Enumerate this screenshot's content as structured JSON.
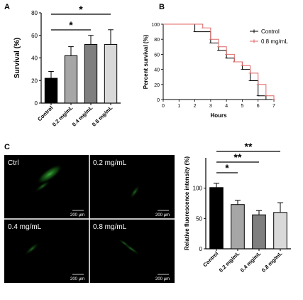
{
  "panels": {
    "a": "A",
    "b": "B",
    "c": "C"
  },
  "chart_data": [
    {
      "type": "bar",
      "panel": "A",
      "categories": [
        "Control",
        "0.2 mg/mL",
        "0.4 mg/mL",
        "0.8 mg/mL"
      ],
      "values": [
        22,
        42,
        52,
        52
      ],
      "errors": [
        6,
        8,
        8,
        13
      ],
      "colors": [
        "#000000",
        "#a6a6a6",
        "#7f7f7f",
        "#d9d9d9"
      ],
      "ylabel": "Survival (%)",
      "ylim": [
        0,
        80
      ],
      "yticks": [
        "0",
        "20",
        "40",
        "60",
        "80"
      ],
      "significance": [
        {
          "from": 0,
          "to": 3,
          "label": "*"
        },
        {
          "from": 0,
          "to": 2,
          "label": "*"
        }
      ]
    },
    {
      "type": "line",
      "panel": "B",
      "subtype": "survival-step",
      "xlabel": "Hours",
      "ylabel": "Percent survival (%)",
      "xlim": [
        0,
        7
      ],
      "ylim": [
        0,
        100
      ],
      "xticks": [
        "0",
        "1",
        "2",
        "3",
        "4",
        "5",
        "6",
        "7"
      ],
      "yticks": [
        "0",
        "20",
        "40",
        "60",
        "80",
        "100"
      ],
      "legend_position": "top-right",
      "series": [
        {
          "name": "Control",
          "color": "#000000",
          "marker": "+",
          "x": [
            0,
            2,
            2.5,
            3,
            3.5,
            4,
            4.5,
            5,
            5.5,
            6,
            6.5,
            7
          ],
          "y": [
            100,
            90,
            90,
            75,
            65,
            55,
            50,
            40,
            25,
            5,
            0,
            0
          ]
        },
        {
          "name": "0.8 mg/mL",
          "color": "#e06666",
          "marker": "+",
          "x": [
            0,
            2,
            2.5,
            3,
            3.5,
            4,
            4.5,
            5,
            5.5,
            6,
            6.5,
            7
          ],
          "y": [
            100,
            100,
            95,
            80,
            70,
            60,
            50,
            45,
            35,
            20,
            5,
            0
          ]
        }
      ]
    },
    {
      "type": "bar",
      "panel": "C",
      "categories": [
        "Control",
        "0.2 mg/mL",
        "0.4 mg/mL",
        "0.8 mg/mL"
      ],
      "values": [
        101,
        73,
        56,
        60
      ],
      "errors": [
        7,
        7,
        7,
        16
      ],
      "colors": [
        "#000000",
        "#a6a6a6",
        "#7f7f7f",
        "#d9d9d9"
      ],
      "ylabel": "Relative fluorescence intensity (%)",
      "ylim": [
        0,
        150
      ],
      "yticks": [
        "0",
        "50",
        "100"
      ],
      "significance": [
        {
          "from": 0,
          "to": 3,
          "label": "**"
        },
        {
          "from": 0,
          "to": 2,
          "label": "**"
        },
        {
          "from": 0,
          "to": 1,
          "label": "*"
        }
      ]
    }
  ],
  "micrographs": [
    {
      "label": "Ctrl",
      "scale": "200 μm"
    },
    {
      "label": "0.2 mg/mL",
      "scale": "200 μm"
    },
    {
      "label": "0.4 mg/mL",
      "scale": "200 μm"
    },
    {
      "label": "0.8 mg/mL",
      "scale": "200 μm"
    }
  ]
}
